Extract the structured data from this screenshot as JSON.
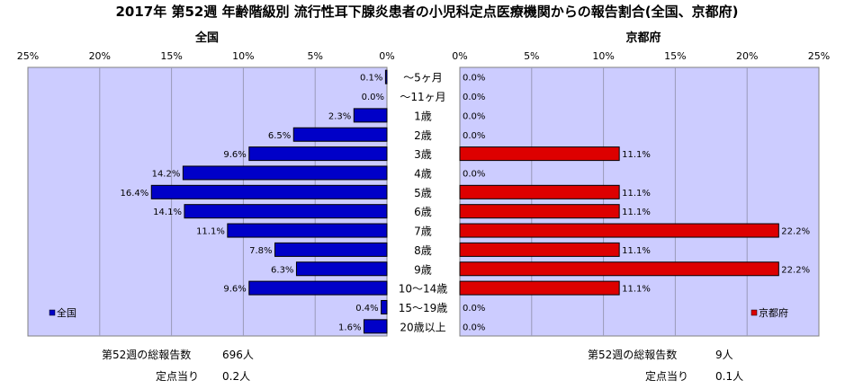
{
  "title": "2017年 第52週 年齢階級別 流行性耳下腺炎患者の小児科定点医療機関からの報告割合(全国、京都府)",
  "chart_data": {
    "type": "bar",
    "orientation": "horizontal",
    "axis_ticks": [
      "0%",
      "5%",
      "10%",
      "15%",
      "20%",
      "25%"
    ],
    "xlim": [
      0,
      25
    ],
    "categories": [
      "～5ヶ月",
      "～11ヶ月",
      "1歳",
      "2歳",
      "3歳",
      "4歳",
      "5歳",
      "6歳",
      "7歳",
      "8歳",
      "9歳",
      "10～14歳",
      "15～19歳",
      "20歳以上"
    ],
    "series": [
      {
        "name": "全国",
        "panel_title": "全国",
        "side": "left",
        "color": "#0000c8",
        "plot_bg": "#ccccff",
        "values": [
          0.1,
          0.0,
          2.3,
          6.5,
          9.6,
          14.2,
          16.4,
          14.1,
          11.1,
          7.8,
          6.3,
          9.6,
          0.4,
          1.6
        ],
        "labels": [
          "0.1%",
          "0.0%",
          "2.3%",
          "6.5%",
          "9.6%",
          "14.2%",
          "16.4%",
          "14.1%",
          "11.1%",
          "7.8%",
          "6.3%",
          "9.6%",
          "0.4%",
          "1.6%"
        ]
      },
      {
        "name": "京都府",
        "panel_title": "京都府",
        "side": "right",
        "color": "#dd0000",
        "plot_bg": "#ccccff",
        "values": [
          0.0,
          0.0,
          0.0,
          0.0,
          11.1,
          0.0,
          11.1,
          11.1,
          22.2,
          11.1,
          22.2,
          11.1,
          0.0,
          0.0
        ],
        "labels": [
          "0.0%",
          "0.0%",
          "0.0%",
          "0.0%",
          "11.1%",
          "0.0%",
          "11.1%",
          "11.1%",
          "22.2%",
          "11.1%",
          "22.2%",
          "11.1%",
          "0.0%",
          "0.0%"
        ]
      }
    ],
    "legend_position": "bottom-left"
  },
  "footer": {
    "national": {
      "total_label": "第52週の総報告数",
      "total_value": "696人",
      "per_label": "定点当り",
      "per_value": "0.2人"
    },
    "kyoto": {
      "total_label": "第52週の総報告数",
      "total_value": "9人",
      "per_label": "定点当り",
      "per_value": "0.1人"
    }
  }
}
